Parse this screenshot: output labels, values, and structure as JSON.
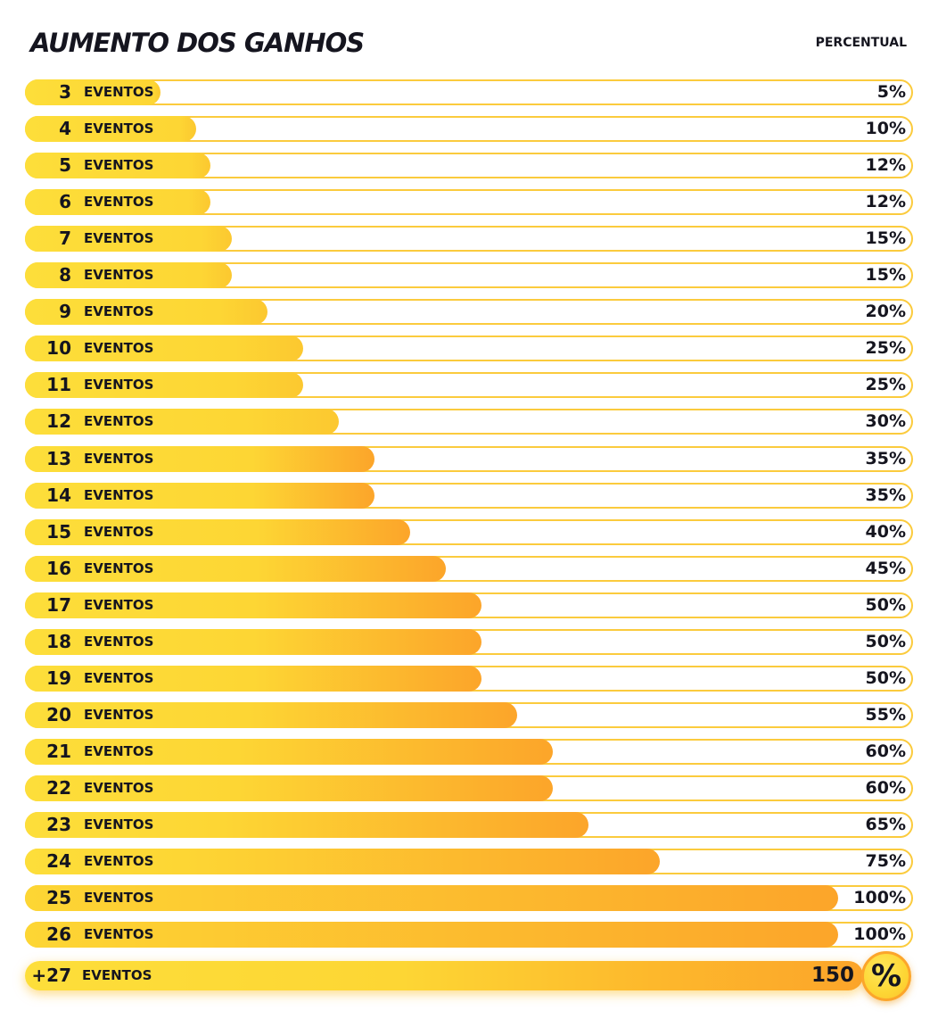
{
  "header": {
    "title": "AUMENTO DOS GANHOS",
    "column_label": "PERCENTUAL"
  },
  "colors": {
    "bar_fill_start": "#fdde3a",
    "bar_fill_end": "#fca52a",
    "row_border": "#fbcb3d",
    "text": "#15151f"
  },
  "chart_data": {
    "type": "bar",
    "orientation": "horizontal",
    "title": "AUMENTO DOS GANHOS",
    "value_label": "PERCENTUAL",
    "unit_word": "EVENTOS",
    "categories": [
      "3",
      "4",
      "5",
      "6",
      "7",
      "8",
      "9",
      "10",
      "11",
      "12",
      "13",
      "14",
      "15",
      "16",
      "17",
      "18",
      "19",
      "20",
      "21",
      "22",
      "23",
      "24",
      "25",
      "26"
    ],
    "values": [
      5,
      10,
      12,
      12,
      15,
      15,
      20,
      25,
      25,
      30,
      35,
      35,
      40,
      45,
      50,
      50,
      50,
      55,
      60,
      60,
      65,
      75,
      100,
      100
    ],
    "value_labels": [
      "5%",
      "10%",
      "12%",
      "12%",
      "15%",
      "15%",
      "20%",
      "25%",
      "25%",
      "30%",
      "35%",
      "35%",
      "40%",
      "45%",
      "50%",
      "50%",
      "50%",
      "55%",
      "60%",
      "60%",
      "65%",
      "75%",
      "100%",
      "100%"
    ],
    "final": {
      "category": "+27",
      "value": 150,
      "value_label": "150",
      "badge": "%"
    }
  }
}
